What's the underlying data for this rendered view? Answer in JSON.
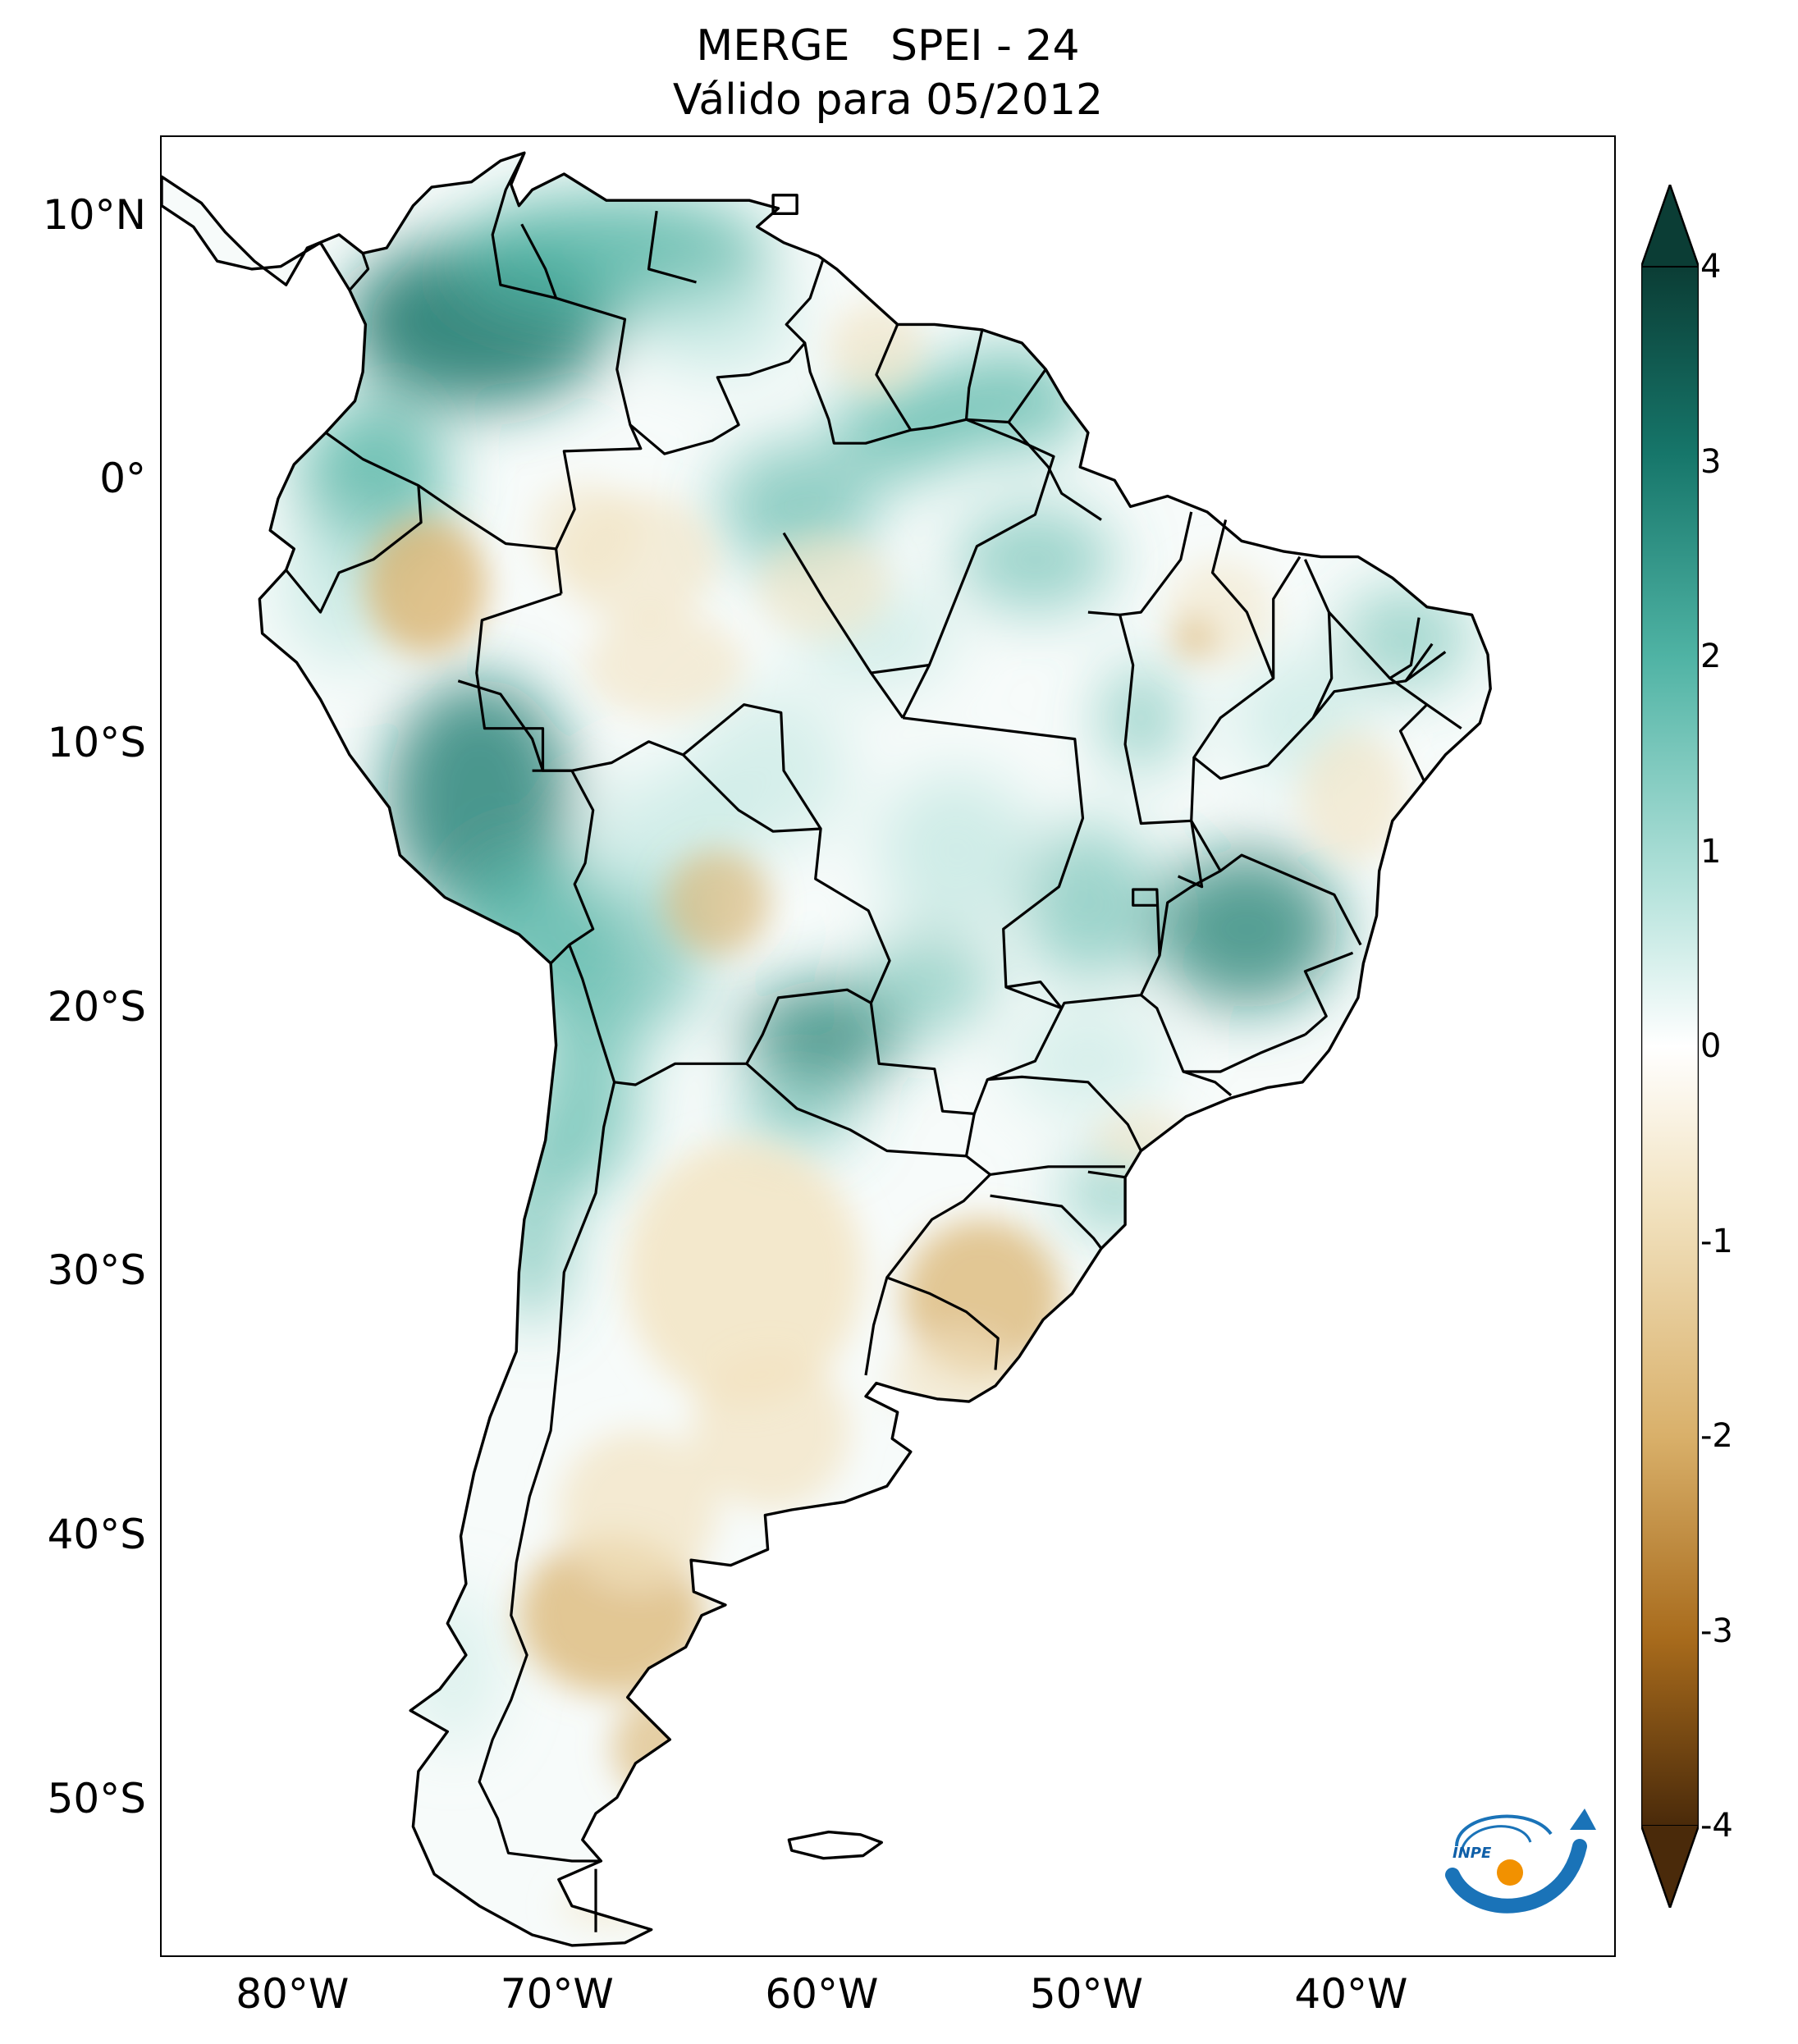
{
  "title": {
    "line1": "MERGE   SPEI - 24",
    "line2": "Válido para 05/2012"
  },
  "map": {
    "region": "South America",
    "variable": "SPEI - 24",
    "lat_range": [
      -56,
      13
    ],
    "lon_range": [
      -85,
      -30
    ],
    "lat_labels": [
      {
        "value": 10,
        "text": "10°N"
      },
      {
        "value": 0,
        "text": "0°"
      },
      {
        "value": -10,
        "text": "10°S"
      },
      {
        "value": -20,
        "text": "20°S"
      },
      {
        "value": -30,
        "text": "30°S"
      },
      {
        "value": -40,
        "text": "40°S"
      },
      {
        "value": -50,
        "text": "50°S"
      }
    ],
    "lon_labels": [
      {
        "value": -80,
        "text": "80°W"
      },
      {
        "value": -70,
        "text": "70°W"
      },
      {
        "value": -60,
        "text": "60°W"
      },
      {
        "value": -50,
        "text": "50°W"
      },
      {
        "value": -40,
        "text": "40°W"
      }
    ]
  },
  "colorbar": {
    "min": -4,
    "max": 4,
    "extend": "both",
    "ticks": [
      {
        "value": 4,
        "text": "4"
      },
      {
        "value": 3,
        "text": "3"
      },
      {
        "value": 2,
        "text": "2"
      },
      {
        "value": 1,
        "text": "1"
      },
      {
        "value": 0,
        "text": "0"
      },
      {
        "value": -1,
        "text": "-1"
      },
      {
        "value": -2,
        "text": "-2"
      },
      {
        "value": -3,
        "text": "-3"
      },
      {
        "value": -4,
        "text": "-4"
      }
    ],
    "colors": {
      "wet_extreme": "#0b3d35",
      "wet_strong": "#16766a",
      "wet_moderate": "#4fb3a4",
      "wet_mild": "#b6e3dc",
      "neutral": "#ffffff",
      "dry_mild": "#f2e3c1",
      "dry_moderate": "#d9b06a",
      "dry_strong": "#a86b1c",
      "dry_extreme": "#4a2a0a"
    }
  },
  "logo": {
    "text": "INPE",
    "colors": {
      "arc": "#1a73b8",
      "dot": "#f29100"
    }
  }
}
